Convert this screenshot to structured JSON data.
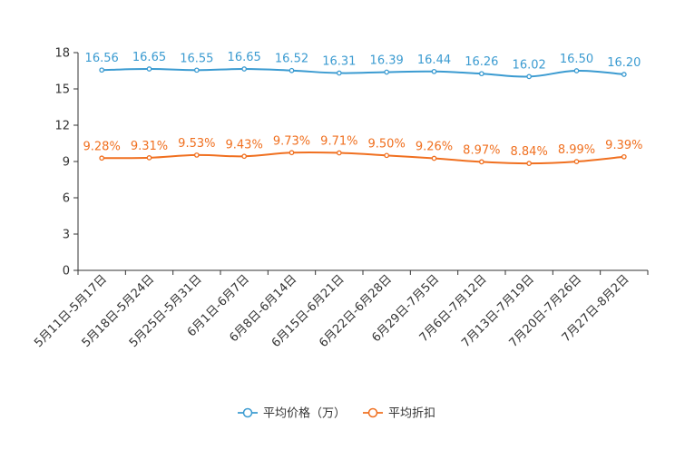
{
  "chart_data": {
    "type": "line",
    "categories": [
      "5月11日-5月17日",
      "5月18日-5月24日",
      "5月25日-5月31日",
      "6月1日-6月7日",
      "6月8日-6月14日",
      "6月15日-6月21日",
      "6月22日-6月28日",
      "6月29日-7月5日",
      "7月6日-7月12日",
      "7月13日-7月19日",
      "7月20日-7月26日",
      "7月27日-8月2日"
    ],
    "series": [
      {
        "name": "平均价格（万）",
        "color": "#3b9bd1",
        "values": [
          16.56,
          16.65,
          16.55,
          16.65,
          16.52,
          16.31,
          16.39,
          16.44,
          16.26,
          16.02,
          16.5,
          16.2
        ],
        "labels": [
          "16.56",
          "16.65",
          "16.55",
          "16.65",
          "16.52",
          "16.31",
          "16.39",
          "16.44",
          "16.26",
          "16.02",
          "16.50",
          "16.20"
        ]
      },
      {
        "name": "平均折扣",
        "color": "#f07020",
        "values": [
          9.28,
          9.31,
          9.53,
          9.43,
          9.73,
          9.71,
          9.5,
          9.26,
          8.97,
          8.84,
          8.99,
          9.39
        ],
        "labels": [
          "9.28%",
          "9.31%",
          "9.53%",
          "9.43%",
          "9.73%",
          "9.71%",
          "9.50%",
          "9.26%",
          "8.97%",
          "8.84%",
          "8.99%",
          "9.39%"
        ]
      }
    ],
    "ylim": [
      0,
      18
    ],
    "yticks": [
      0,
      3,
      6,
      9,
      12,
      15,
      18
    ],
    "title": "",
    "xlabel": "",
    "ylabel": "",
    "legend_position": "bottom-center"
  }
}
